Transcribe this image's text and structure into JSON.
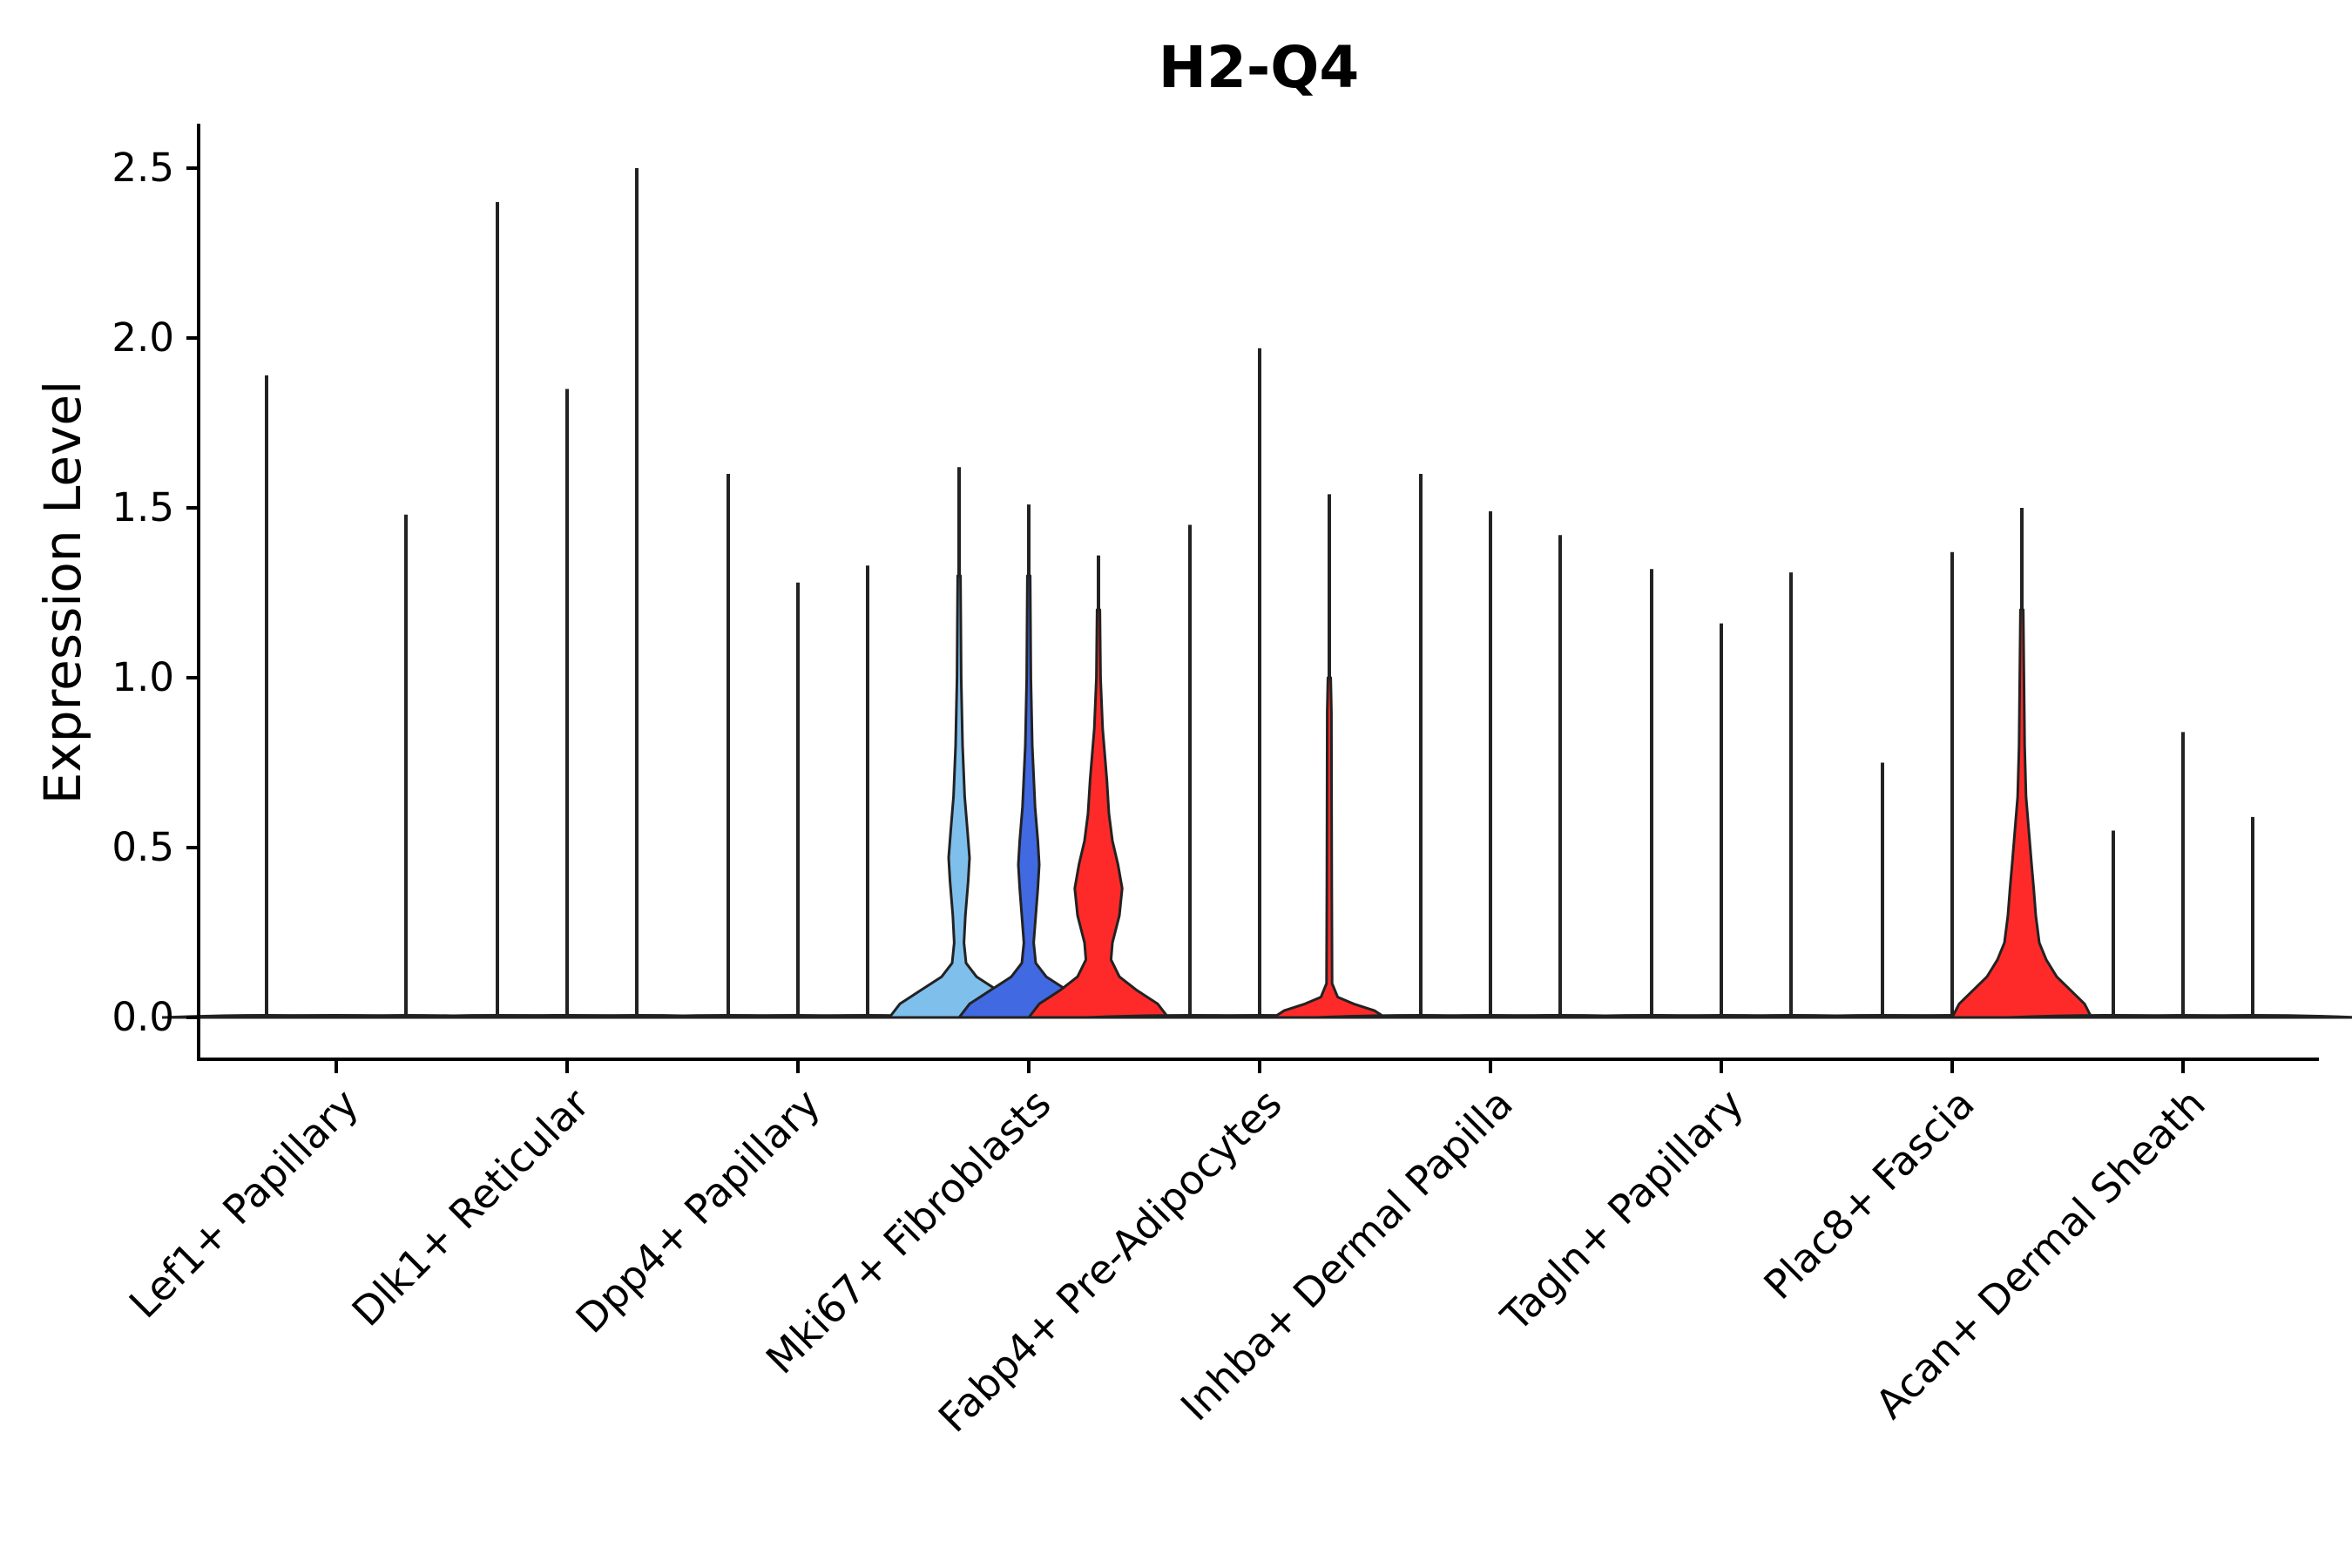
{
  "chart_data": {
    "type": "violin",
    "title": "H2-Q4",
    "xlabel": "",
    "ylabel": "Expression Level",
    "ylim": [
      -0.125,
      2.63
    ],
    "yticks": [
      "0.0",
      "0.5",
      "1.0",
      "1.5",
      "2.0",
      "2.5"
    ],
    "ytick_values": [
      0.0,
      0.5,
      1.0,
      1.5,
      2.0,
      2.5
    ],
    "grid": false,
    "legend": "none",
    "categories": [
      "Lef1+ Papillary",
      "Dlk1+ Reticular",
      "Dpp4+ Papillary",
      "Mki67+ Fibroblasts",
      "Fabp4+ Pre-Adipocytes",
      "Inhba+ Dermal Papilla",
      "Tagln+ Papillary",
      "Plac8+ Fascia",
      "Acan+ Dermal Sheath"
    ],
    "groups_per_category": 3,
    "violins": [
      {
        "category": 0,
        "slot": 0,
        "max": 1.89,
        "color": "#f8f8f8",
        "profile": [
          [
            0,
            0.15
          ]
        ]
      },
      {
        "category": 0,
        "slot": 1,
        "max": 0.0,
        "color": "#f8f8f8",
        "profile": [
          [
            0,
            0.15
          ]
        ]
      },
      {
        "category": 0,
        "slot": 2,
        "max": 1.48,
        "color": "#f8f8f8",
        "profile": [
          [
            0,
            0.15
          ]
        ]
      },
      {
        "category": 1,
        "slot": 0,
        "max": 2.4,
        "color": "#f8f8f8",
        "profile": [
          [
            0,
            0.15
          ]
        ]
      },
      {
        "category": 1,
        "slot": 1,
        "max": 1.85,
        "color": "#f8f8f8",
        "profile": [
          [
            0,
            0.15
          ]
        ]
      },
      {
        "category": 1,
        "slot": 2,
        "max": 2.5,
        "color": "#f8f8f8",
        "profile": [
          [
            0,
            0.15
          ]
        ]
      },
      {
        "category": 2,
        "slot": 0,
        "max": 1.6,
        "color": "#f8f8f8",
        "profile": [
          [
            0,
            0.15
          ]
        ]
      },
      {
        "category": 2,
        "slot": 1,
        "max": 1.28,
        "color": "#f8f8f8",
        "profile": [
          [
            0,
            0.15
          ]
        ]
      },
      {
        "category": 2,
        "slot": 2,
        "max": 1.33,
        "color": "#f8f8f8",
        "profile": [
          [
            0,
            0.15
          ]
        ]
      },
      {
        "category": 3,
        "slot": 0,
        "max": 1.62,
        "color": "#7fbfec",
        "profile": [
          [
            0,
            1.0
          ],
          [
            0.04,
            0.85
          ],
          [
            0.08,
            0.55
          ],
          [
            0.12,
            0.25
          ],
          [
            0.16,
            0.1
          ],
          [
            0.22,
            0.07
          ],
          [
            0.3,
            0.09
          ],
          [
            0.4,
            0.13
          ],
          [
            0.47,
            0.15
          ],
          [
            0.55,
            0.12
          ],
          [
            0.65,
            0.08
          ],
          [
            0.8,
            0.05
          ],
          [
            1.0,
            0.03
          ],
          [
            1.3,
            0.02
          ]
        ]
      },
      {
        "category": 3,
        "slot": 1,
        "max": 1.51,
        "color": "#4169e1",
        "profile": [
          [
            0,
            1.0
          ],
          [
            0.04,
            0.85
          ],
          [
            0.08,
            0.55
          ],
          [
            0.12,
            0.25
          ],
          [
            0.16,
            0.1
          ],
          [
            0.22,
            0.07
          ],
          [
            0.3,
            0.1
          ],
          [
            0.38,
            0.13
          ],
          [
            0.45,
            0.15
          ],
          [
            0.52,
            0.13
          ],
          [
            0.62,
            0.09
          ],
          [
            0.8,
            0.05
          ],
          [
            1.0,
            0.03
          ],
          [
            1.3,
            0.02
          ]
        ]
      },
      {
        "category": 3,
        "slot": 2,
        "max": 1.36,
        "color": "#fe2a2a",
        "profile": [
          [
            0,
            1.0
          ],
          [
            0.04,
            0.85
          ],
          [
            0.08,
            0.55
          ],
          [
            0.12,
            0.3
          ],
          [
            0.17,
            0.18
          ],
          [
            0.22,
            0.2
          ],
          [
            0.3,
            0.3
          ],
          [
            0.38,
            0.34
          ],
          [
            0.45,
            0.28
          ],
          [
            0.52,
            0.2
          ],
          [
            0.6,
            0.15
          ],
          [
            0.7,
            0.12
          ],
          [
            0.85,
            0.06
          ],
          [
            1.0,
            0.03
          ],
          [
            1.2,
            0.02
          ]
        ]
      },
      {
        "category": 4,
        "slot": 0,
        "max": 1.45,
        "color": "#f8f8f8",
        "profile": [
          [
            0,
            0.15
          ]
        ]
      },
      {
        "category": 4,
        "slot": 1,
        "max": 1.97,
        "color": "#f8f8f8",
        "profile": [
          [
            0,
            0.15
          ]
        ]
      },
      {
        "category": 4,
        "slot": 2,
        "max": 1.54,
        "color": "#fe2a2a",
        "profile": [
          [
            0,
            0.8
          ],
          [
            0.02,
            0.65
          ],
          [
            0.04,
            0.35
          ],
          [
            0.06,
            0.12
          ],
          [
            0.1,
            0.04
          ],
          [
            0.4,
            0.035
          ],
          [
            0.9,
            0.03
          ],
          [
            1.0,
            0.02
          ]
        ]
      },
      {
        "category": 5,
        "slot": 0,
        "max": 1.6,
        "color": "#f8f8f8",
        "profile": [
          [
            0,
            0.15
          ]
        ]
      },
      {
        "category": 5,
        "slot": 1,
        "max": 1.49,
        "color": "#f8f8f8",
        "profile": [
          [
            0,
            0.15
          ]
        ]
      },
      {
        "category": 5,
        "slot": 2,
        "max": 1.42,
        "color": "#f8f8f8",
        "profile": [
          [
            0,
            0.15
          ]
        ]
      },
      {
        "category": 6,
        "slot": 0,
        "max": 1.32,
        "color": "#f8f8f8",
        "profile": [
          [
            0,
            0.15
          ]
        ]
      },
      {
        "category": 6,
        "slot": 1,
        "max": 1.16,
        "color": "#f8f8f8",
        "profile": [
          [
            0,
            0.15
          ]
        ]
      },
      {
        "category": 6,
        "slot": 2,
        "max": 1.31,
        "color": "#f8f8f8",
        "profile": [
          [
            0,
            0.15
          ]
        ]
      },
      {
        "category": 7,
        "slot": 0,
        "max": 0.75,
        "color": "#f8f8f8",
        "profile": [
          [
            0,
            0.15
          ]
        ]
      },
      {
        "category": 7,
        "slot": 1,
        "max": 1.37,
        "color": "#f8f8f8",
        "profile": [
          [
            0,
            0.15
          ]
        ]
      },
      {
        "category": 7,
        "slot": 2,
        "max": 1.5,
        "color": "#fe2a2a",
        "profile": [
          [
            0,
            1.0
          ],
          [
            0.04,
            0.9
          ],
          [
            0.08,
            0.7
          ],
          [
            0.12,
            0.5
          ],
          [
            0.17,
            0.35
          ],
          [
            0.22,
            0.25
          ],
          [
            0.3,
            0.2
          ],
          [
            0.38,
            0.17
          ],
          [
            0.45,
            0.14
          ],
          [
            0.55,
            0.1
          ],
          [
            0.65,
            0.06
          ],
          [
            0.8,
            0.04
          ],
          [
            1.0,
            0.03
          ],
          [
            1.2,
            0.02
          ]
        ]
      },
      {
        "category": 8,
        "slot": 0,
        "max": 0.55,
        "color": "#f8f8f8",
        "profile": [
          [
            0,
            0.15
          ]
        ]
      },
      {
        "category": 8,
        "slot": 1,
        "max": 0.84,
        "color": "#f8f8f8",
        "profile": [
          [
            0,
            0.15
          ]
        ]
      },
      {
        "category": 8,
        "slot": 2,
        "max": 0.59,
        "color": "#f8f8f8",
        "profile": [
          [
            0,
            0.15
          ]
        ]
      }
    ]
  }
}
